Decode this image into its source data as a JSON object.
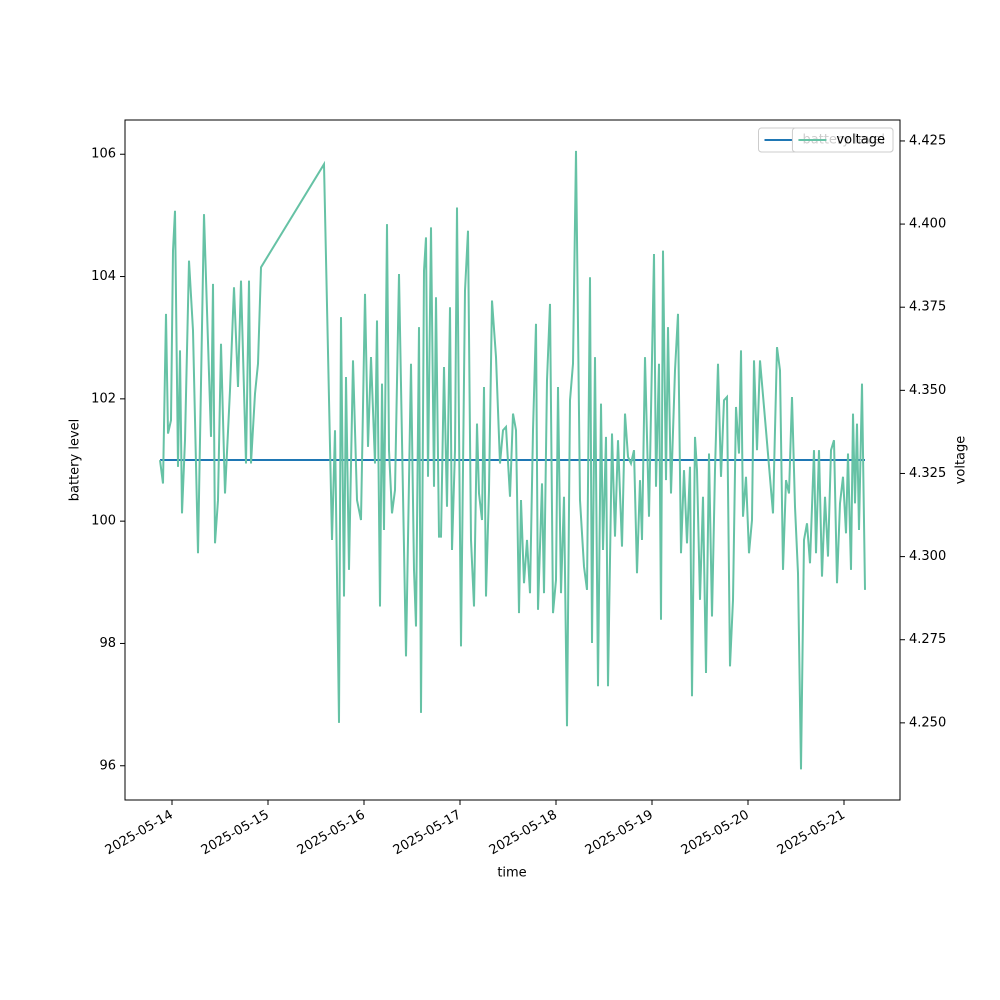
{
  "chart_data": {
    "type": "line",
    "xlabel": "time",
    "ylabel": "battery level",
    "y2label": "voltage",
    "x": [
      "2025-05-13 21:00",
      "2025-05-13 21:45",
      "2025-05-13 22:30",
      "2025-05-13 23:00",
      "2025-05-13 23:45",
      "2025-05-14 00:15",
      "2025-05-14 00:45",
      "2025-05-14 01:30",
      "2025-05-14 02:00",
      "2025-05-14 02:30",
      "2025-05-14 03:15",
      "2025-05-14 04:15",
      "2025-05-14 05:15",
      "2025-05-14 06:30",
      "2025-05-14 08:00",
      "2025-05-14 08:45",
      "2025-05-14 09:45",
      "2025-05-14 10:15",
      "2025-05-14 10:45",
      "2025-05-14 11:30",
      "2025-05-14 12:15",
      "2025-05-14 13:15",
      "2025-05-14 14:30",
      "2025-05-14 15:30",
      "2025-05-14 16:30",
      "2025-05-14 17:15",
      "2025-05-14 18:30",
      "2025-05-14 19:15",
      "2025-05-14 19:45",
      "2025-05-14 20:45",
      "2025-05-14 21:30",
      "2025-05-14 22:15",
      "2025-05-15 14:00",
      "2025-05-15 16:00",
      "2025-05-15 16:45",
      "2025-05-15 17:45",
      "2025-05-15 18:15",
      "2025-05-15 19:00",
      "2025-05-15 19:30",
      "2025-05-15 20:15",
      "2025-05-15 21:15",
      "2025-05-15 22:15",
      "2025-05-15 23:15",
      "2025-05-16 00:15",
      "2025-05-16 01:00",
      "2025-05-16 01:45",
      "2025-05-16 02:45",
      "2025-05-16 03:15",
      "2025-05-16 04:00",
      "2025-05-16 04:30",
      "2025-05-16 05:00",
      "2025-05-16 05:45",
      "2025-05-16 06:15",
      "2025-05-16 07:00",
      "2025-05-16 07:45",
      "2025-05-16 08:45",
      "2025-05-16 09:30",
      "2025-05-16 10:30",
      "2025-05-16 11:45",
      "2025-05-16 12:30",
      "2025-05-16 13:00",
      "2025-05-16 13:45",
      "2025-05-16 14:15",
      "2025-05-16 15:00",
      "2025-05-16 15:30",
      "2025-05-16 16:00",
      "2025-05-16 16:45",
      "2025-05-16 17:30",
      "2025-05-16 18:00",
      "2025-05-16 18:45",
      "2025-05-16 19:15",
      "2025-05-16 20:00",
      "2025-05-16 20:45",
      "2025-05-16 21:30",
      "2025-05-16 22:00",
      "2025-05-16 22:45",
      "2025-05-16 23:15",
      "2025-05-17 00:15",
      "2025-05-17 01:15",
      "2025-05-17 02:00",
      "2025-05-17 02:45",
      "2025-05-17 03:30",
      "2025-05-17 04:15",
      "2025-05-17 04:45",
      "2025-05-17 05:30",
      "2025-05-17 06:00",
      "2025-05-17 06:30",
      "2025-05-17 07:15",
      "2025-05-17 08:00",
      "2025-05-17 09:00",
      "2025-05-17 10:00",
      "2025-05-17 10:45",
      "2025-05-17 11:30",
      "2025-05-17 12:30",
      "2025-05-17 13:15",
      "2025-05-17 14:00",
      "2025-05-17 14:45",
      "2025-05-17 15:15",
      "2025-05-17 16:00",
      "2025-05-17 16:45",
      "2025-05-17 17:30",
      "2025-05-17 18:15",
      "2025-05-17 19:00",
      "2025-05-17 19:30",
      "2025-05-17 20:30",
      "2025-05-17 21:00",
      "2025-05-17 21:45",
      "2025-05-17 22:30",
      "2025-05-17 23:15",
      "2025-05-18 00:00",
      "2025-05-18 00:30",
      "2025-05-18 01:15",
      "2025-05-18 02:00",
      "2025-05-18 02:45",
      "2025-05-18 03:30",
      "2025-05-18 04:15",
      "2025-05-18 05:00",
      "2025-05-18 06:00",
      "2025-05-18 07:00",
      "2025-05-18 07:45",
      "2025-05-18 08:30",
      "2025-05-18 09:00",
      "2025-05-18 09:45",
      "2025-05-18 10:30",
      "2025-05-18 11:15",
      "2025-05-18 11:45",
      "2025-05-18 12:30",
      "2025-05-18 13:00",
      "2025-05-18 14:00",
      "2025-05-18 14:45",
      "2025-05-18 15:30",
      "2025-05-18 16:30",
      "2025-05-18 17:15",
      "2025-05-18 18:00",
      "2025-05-18 18:45",
      "2025-05-18 19:30",
      "2025-05-18 20:15",
      "2025-05-18 21:00",
      "2025-05-18 21:30",
      "2025-05-18 22:15",
      "2025-05-18 23:15",
      "2025-05-19 00:30",
      "2025-05-19 01:00",
      "2025-05-19 01:45",
      "2025-05-19 02:15",
      "2025-05-19 02:45",
      "2025-05-19 03:30",
      "2025-05-19 04:00",
      "2025-05-19 04:45",
      "2025-05-19 05:45",
      "2025-05-19 06:30",
      "2025-05-19 07:15",
      "2025-05-19 08:00",
      "2025-05-19 08:45",
      "2025-05-19 09:30",
      "2025-05-19 10:00",
      "2025-05-19 10:45",
      "2025-05-19 11:15",
      "2025-05-19 12:00",
      "2025-05-19 12:45",
      "2025-05-19 13:30",
      "2025-05-19 14:15",
      "2025-05-19 15:00",
      "2025-05-19 15:45",
      "2025-05-19 16:30",
      "2025-05-19 17:15",
      "2025-05-19 18:00",
      "2025-05-19 18:45",
      "2025-05-19 19:30",
      "2025-05-19 20:15",
      "2025-05-19 21:00",
      "2025-05-19 21:45",
      "2025-05-19 22:15",
      "2025-05-19 22:45",
      "2025-05-19 23:30",
      "2025-05-20 00:15",
      "2025-05-20 01:00",
      "2025-05-20 01:30",
      "2025-05-20 02:15",
      "2025-05-20 03:00",
      "2025-05-20 04:30",
      "2025-05-20 06:15",
      "2025-05-20 07:15",
      "2025-05-20 08:00",
      "2025-05-20 08:45",
      "2025-05-20 09:30",
      "2025-05-20 10:15",
      "2025-05-20 11:00",
      "2025-05-20 11:45",
      "2025-05-20 12:30",
      "2025-05-20 13:15",
      "2025-05-20 14:00",
      "2025-05-20 14:45",
      "2025-05-20 15:30",
      "2025-05-20 16:30",
      "2025-05-20 17:00",
      "2025-05-20 17:45",
      "2025-05-20 18:30",
      "2025-05-20 19:15",
      "2025-05-20 20:00",
      "2025-05-20 20:45",
      "2025-05-20 21:30",
      "2025-05-20 22:15",
      "2025-05-20 23:00",
      "2025-05-20 23:45",
      "2025-05-21 00:30",
      "2025-05-21 01:00",
      "2025-05-21 01:45",
      "2025-05-21 02:15",
      "2025-05-21 02:45",
      "2025-05-21 03:15",
      "2025-05-21 03:45",
      "2025-05-21 04:30",
      "2025-05-21 05:15"
    ],
    "series": [
      {
        "name": "battery level",
        "color": "#1f77b4",
        "values": [
          101,
          101,
          101,
          101,
          101,
          101,
          101,
          101,
          101,
          101,
          101,
          101,
          101,
          101,
          101,
          101,
          101,
          101,
          101,
          101,
          101,
          101,
          101,
          101,
          101,
          101,
          101,
          101,
          101,
          101,
          101,
          101,
          101,
          101,
          101,
          101,
          101,
          101,
          101,
          101,
          101,
          101,
          101,
          101,
          101,
          101,
          101,
          101,
          101,
          101,
          101,
          101,
          101,
          101,
          101,
          101,
          101,
          101,
          101,
          101,
          101,
          101,
          101,
          101,
          101,
          101,
          101,
          101,
          101,
          101,
          101,
          101,
          101,
          101,
          101,
          101,
          101,
          101,
          101,
          101,
          101,
          101,
          101,
          101,
          101,
          101,
          101,
          101,
          101,
          101,
          101,
          101,
          101,
          101,
          101,
          101,
          101,
          101,
          101,
          101,
          101,
          101,
          101,
          101,
          101,
          101,
          101,
          101,
          101,
          101,
          101,
          101,
          101,
          101,
          101,
          101,
          101,
          101,
          101,
          101,
          101,
          101,
          101,
          101,
          101,
          101,
          101,
          101,
          101,
          101,
          101,
          101,
          101,
          101,
          101,
          101,
          101,
          101,
          101,
          101,
          101,
          101,
          101,
          101,
          101,
          101,
          101,
          101,
          101,
          101,
          101,
          101,
          101,
          101,
          101,
          101,
          101,
          101,
          101,
          101,
          101,
          101,
          101,
          101,
          101,
          101,
          101,
          101,
          101,
          101,
          101,
          101,
          101,
          101,
          101,
          101,
          101,
          101,
          101,
          101,
          101,
          101,
          101,
          101,
          101,
          101,
          101,
          101,
          101,
          101,
          101,
          101,
          101,
          101,
          101,
          101,
          101,
          101,
          101,
          101,
          101,
          101,
          101,
          101,
          101,
          101,
          101,
          101,
          101,
          101,
          101,
          101,
          101,
          101
        ]
      },
      {
        "name": "voltage",
        "color": "#66c2a5",
        "axis": "y2",
        "values": [
          4.329,
          4.322,
          4.373,
          4.337,
          4.341,
          4.392,
          4.404,
          4.327,
          4.362,
          4.313,
          4.335,
          4.389,
          4.368,
          4.301,
          4.403,
          4.374,
          4.336,
          4.382,
          4.304,
          4.317,
          4.364,
          4.319,
          4.35,
          4.381,
          4.351,
          4.383,
          4.328,
          4.383,
          4.328,
          4.349,
          4.358,
          4.387,
          4.418,
          4.305,
          4.338,
          4.25,
          4.372,
          4.288,
          4.354,
          4.296,
          4.359,
          4.317,
          4.311,
          4.379,
          4.333,
          4.36,
          4.328,
          4.371,
          4.285,
          4.352,
          4.308,
          4.4,
          4.332,
          4.313,
          4.32,
          4.385,
          4.335,
          4.27,
          4.358,
          4.296,
          4.279,
          4.369,
          4.253,
          4.386,
          4.396,
          4.324,
          4.399,
          4.321,
          4.378,
          4.306,
          4.306,
          4.357,
          4.315,
          4.375,
          4.302,
          4.332,
          4.405,
          4.273,
          4.38,
          4.398,
          4.305,
          4.285,
          4.34,
          4.319,
          4.311,
          4.351,
          4.288,
          4.32,
          4.377,
          4.36,
          4.328,
          4.338,
          4.339,
          4.318,
          4.343,
          4.338,
          4.283,
          4.317,
          4.292,
          4.305,
          4.289,
          4.338,
          4.37,
          4.284,
          4.322,
          4.289,
          4.353,
          4.376,
          4.283,
          4.293,
          4.351,
          4.289,
          4.318,
          4.249,
          4.347,
          4.358,
          4.422,
          4.317,
          4.297,
          4.29,
          4.384,
          4.274,
          4.36,
          4.261,
          4.346,
          4.302,
          4.336,
          4.261,
          4.337,
          4.306,
          4.335,
          4.303,
          4.343,
          4.33,
          4.328,
          4.332,
          4.295,
          4.323,
          4.305,
          4.36,
          4.312,
          4.391,
          4.321,
          4.358,
          4.281,
          4.392,
          4.323,
          4.369,
          4.319,
          4.356,
          4.373,
          4.301,
          4.326,
          4.304,
          4.327,
          4.258,
          4.336,
          4.326,
          4.287,
          4.318,
          4.265,
          4.331,
          4.282,
          4.326,
          4.358,
          4.324,
          4.347,
          4.348,
          4.267,
          4.287,
          4.345,
          4.331,
          4.362,
          4.312,
          4.324,
          4.301,
          4.311,
          4.359,
          4.332,
          4.359,
          4.338,
          4.313,
          4.363,
          4.356,
          4.296,
          4.323,
          4.319,
          4.348,
          4.315,
          4.295,
          4.236,
          4.305,
          4.31,
          4.298,
          4.332,
          4.301,
          4.332,
          4.294,
          4.318,
          4.3,
          4.332,
          4.335,
          4.292,
          4.316,
          4.324,
          4.307,
          4.331,
          4.296,
          4.343,
          4.316,
          4.34,
          4.308,
          4.352,
          4.29
        ]
      }
    ],
    "xlim": [
      "2025-05-13 12:15",
      "2025-05-21 14:00"
    ],
    "xticks": [
      "2025-05-14",
      "2025-05-15",
      "2025-05-16",
      "2025-05-17",
      "2025-05-18",
      "2025-05-19",
      "2025-05-20",
      "2025-05-21"
    ],
    "ylim": [
      95.44,
      106.56
    ],
    "yticks": [
      96,
      98,
      100,
      102,
      104,
      106
    ],
    "y2lim": [
      4.2268,
      4.4313
    ],
    "y2ticks": [
      {
        "value": 4.25,
        "label": "4.250"
      },
      4.275,
      {
        "value": 4.3,
        "label": "4.300"
      },
      4.325,
      {
        "value": 4.35,
        "label": "4.350"
      },
      4.375,
      {
        "value": 4.4,
        "label": "4.400"
      },
      4.425
    ],
    "legend": "upper right",
    "grid": false
  }
}
